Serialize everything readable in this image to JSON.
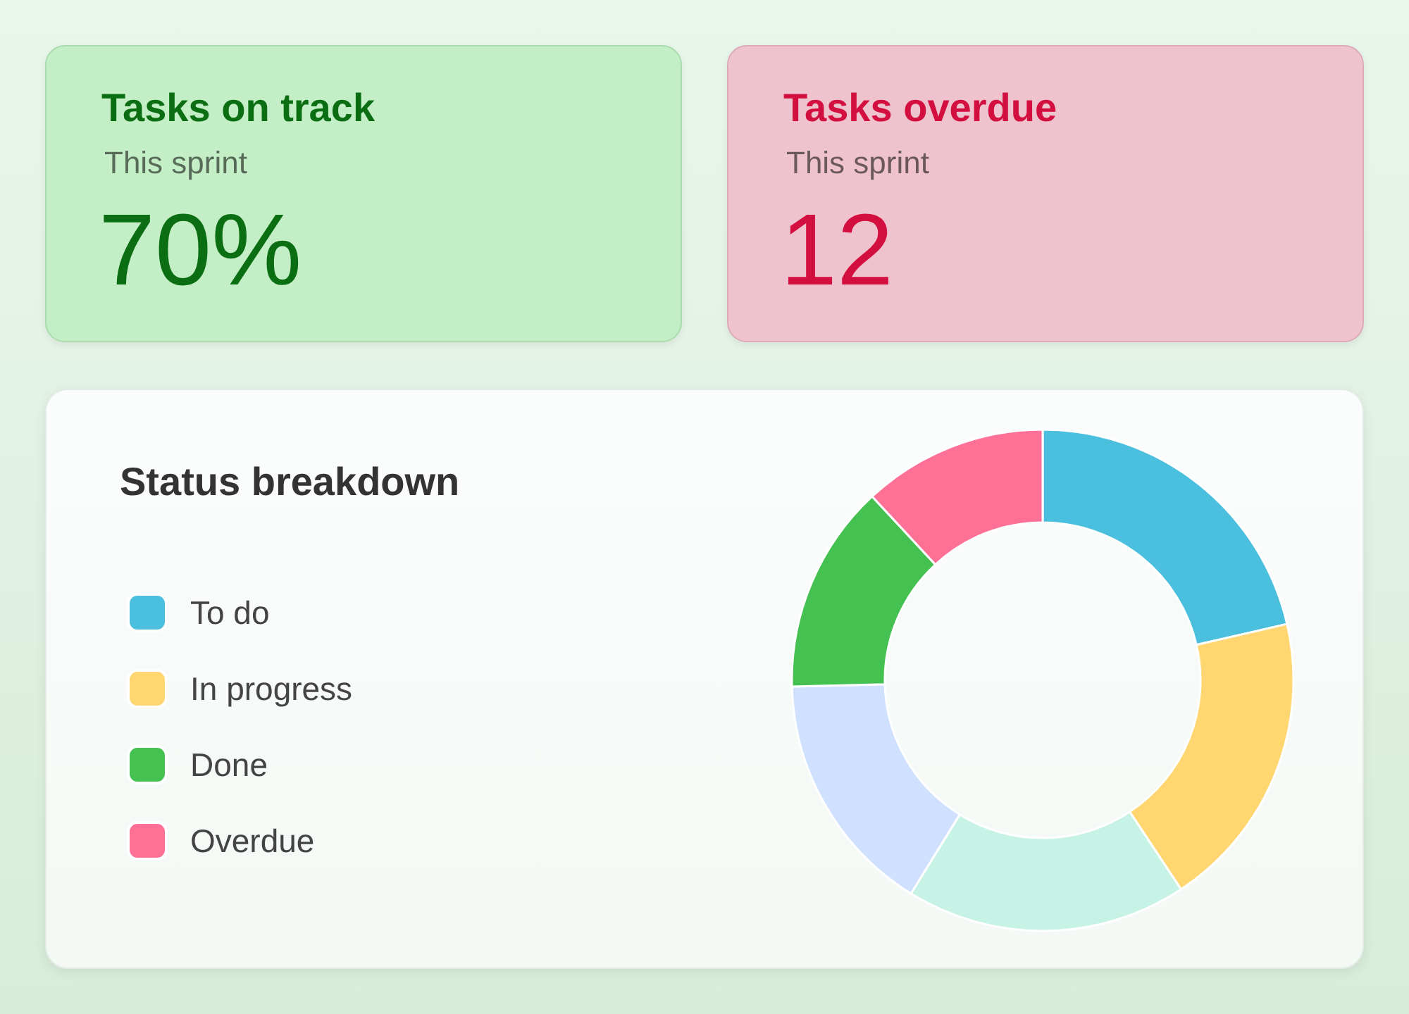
{
  "chart_data": [
    {
      "type": "other",
      "title": "Tasks on track",
      "subtitle": "This sprint",
      "annotations": [
        "70%"
      ],
      "color": "#0b6e12"
    },
    {
      "type": "other",
      "title": "Tasks overdue",
      "subtitle": "This sprint",
      "annotations": [
        "12"
      ],
      "color": "#d30f40"
    },
    {
      "type": "donut",
      "title": "Status breakdown",
      "categories": [
        "To do",
        "In progress",
        null,
        null,
        "Done",
        "Overdue"
      ],
      "values": [
        21.4,
        19.3,
        18.1,
        15.8,
        13.5,
        11.9
      ],
      "colors": [
        "#4bbfde",
        "#ffd670",
        "#c6f3e6",
        "#d0e0ff",
        "#45c152",
        "#ff7096"
      ],
      "legend": "left"
    }
  ]
}
